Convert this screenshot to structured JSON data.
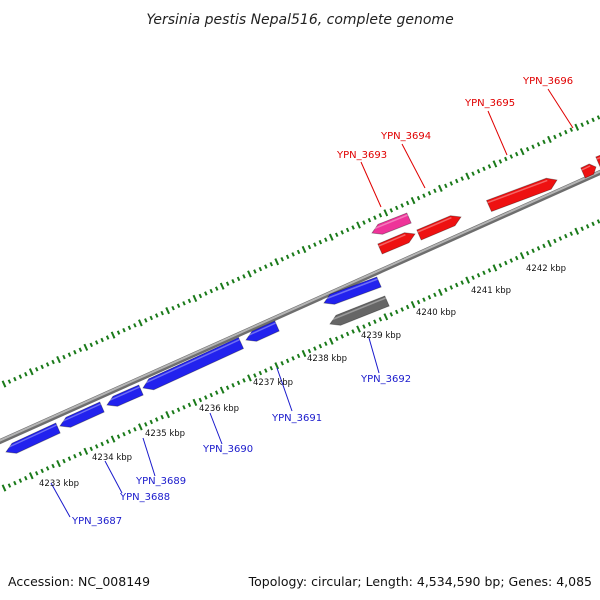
{
  "title": "Yersinia pestis Nepal516, complete genome",
  "footer": {
    "accession": "Accession: NC_008149",
    "summary": "Topology: circular; Length: 4,534,590 bp; Genes: 4,085"
  },
  "colors": {
    "forward_gene": "#ee1111",
    "reverse_gene": "#2222ee",
    "rna_gene": "#ee3399",
    "other_gene": "#666666",
    "backbone": "#8a8a8a",
    "tick": "#1a7a1a",
    "label_red": "#e00000",
    "label_blue": "#1a1acc"
  },
  "kbp_labels": [
    "4233 kbp",
    "4234 kbp",
    "4235 kbp",
    "4236 kbp",
    "4237 kbp",
    "4238 kbp",
    "4239 kbp",
    "4240 kbp",
    "4241 kbp",
    "4242 kbp"
  ],
  "genes_top": [
    "YPN_3693",
    "YPN_3694",
    "YPN_3695",
    "YPN_3696"
  ],
  "genes_bottom": [
    "YPN_3687",
    "YPN_3688",
    "YPN_3689",
    "YPN_3690",
    "YPN_3691",
    "YPN_3692"
  ]
}
